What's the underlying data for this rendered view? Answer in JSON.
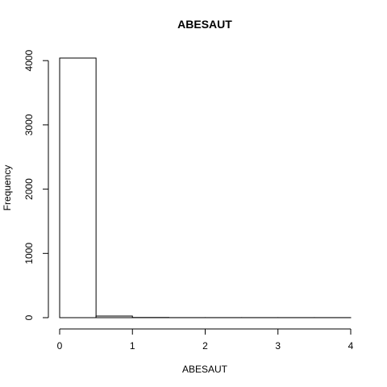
{
  "chart_data": {
    "type": "bar",
    "title": "ABESAUT",
    "xlabel": "ABESAUT",
    "ylabel": "Frequency",
    "bins": [
      {
        "start": 0.0,
        "end": 0.5,
        "count": 4040
      },
      {
        "start": 0.5,
        "end": 1.0,
        "count": 25
      },
      {
        "start": 1.0,
        "end": 1.5,
        "count": 3
      },
      {
        "start": 1.5,
        "end": 2.0,
        "count": 1
      },
      {
        "start": 2.0,
        "end": 2.5,
        "count": 1
      },
      {
        "start": 2.5,
        "end": 3.0,
        "count": 1
      },
      {
        "start": 3.0,
        "end": 3.5,
        "count": 1
      },
      {
        "start": 3.5,
        "end": 4.0,
        "count": 1
      }
    ],
    "xticks": [
      0,
      1,
      2,
      3,
      4
    ],
    "yticks": [
      0,
      1000,
      2000,
      3000,
      4000
    ],
    "xlim": [
      0,
      4
    ],
    "ylim": [
      0,
      4040
    ],
    "grid": false,
    "legend": "none"
  }
}
